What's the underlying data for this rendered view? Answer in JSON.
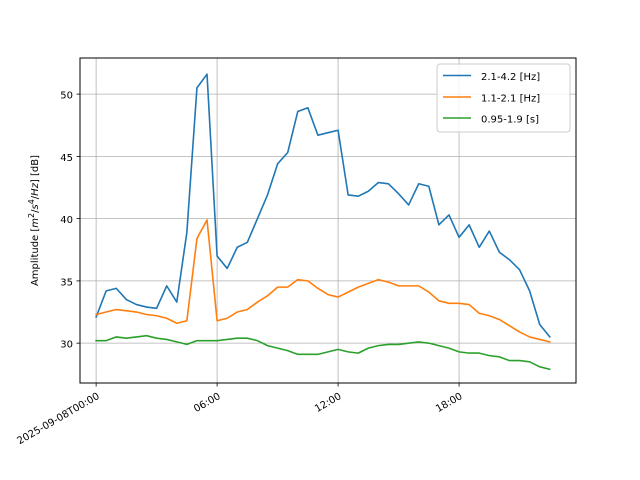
{
  "chart_data": {
    "type": "line",
    "title": "",
    "xlabel": "",
    "ylabel_parts": {
      "prefix": "Amplitude [",
      "m": "m",
      "m_exp": "2",
      "slash1": "/",
      "s": "s",
      "s_exp": "4",
      "slash2": "/",
      "hz": "Hz",
      "suffix": "] [dB]"
    },
    "grid": true,
    "legend_position": "top-right",
    "xlim": [
      "2025-09-07T23:12",
      "2025-09-08T23:48"
    ],
    "ylim": [
      26.8,
      52.9
    ],
    "x_ticks": [
      {
        "t": "2025-09-08T00:00",
        "label": "2025-09-08T00:00"
      },
      {
        "t": "2025-09-08T06:00",
        "label": "06:00"
      },
      {
        "t": "2025-09-08T12:00",
        "label": "12:00"
      },
      {
        "t": "2025-09-08T18:00",
        "label": "18:00"
      }
    ],
    "y_ticks": [
      30,
      35,
      40,
      45,
      50
    ],
    "x": [
      "2025-09-08T00:00",
      "2025-09-08T00:30",
      "2025-09-08T01:00",
      "2025-09-08T01:30",
      "2025-09-08T02:00",
      "2025-09-08T02:30",
      "2025-09-08T03:00",
      "2025-09-08T03:30",
      "2025-09-08T04:00",
      "2025-09-08T04:30",
      "2025-09-08T05:00",
      "2025-09-08T05:30",
      "2025-09-08T06:00",
      "2025-09-08T06:30",
      "2025-09-08T07:00",
      "2025-09-08T07:30",
      "2025-09-08T08:00",
      "2025-09-08T08:30",
      "2025-09-08T09:00",
      "2025-09-08T09:30",
      "2025-09-08T10:00",
      "2025-09-08T10:30",
      "2025-09-08T11:00",
      "2025-09-08T11:30",
      "2025-09-08T12:00",
      "2025-09-08T12:30",
      "2025-09-08T13:00",
      "2025-09-08T13:30",
      "2025-09-08T14:00",
      "2025-09-08T14:30",
      "2025-09-08T15:00",
      "2025-09-08T15:30",
      "2025-09-08T16:00",
      "2025-09-08T16:30",
      "2025-09-08T17:00",
      "2025-09-08T17:30",
      "2025-09-08T18:00",
      "2025-09-08T18:30",
      "2025-09-08T19:00",
      "2025-09-08T19:30",
      "2025-09-08T20:00",
      "2025-09-08T20:30",
      "2025-09-08T21:00",
      "2025-09-08T21:30",
      "2025-09-08T22:00",
      "2025-09-08T22:30"
    ],
    "series": [
      {
        "name": "2.1-4.2 [Hz]",
        "color": "#1f77b4",
        "values": [
          32.1,
          34.2,
          34.4,
          33.5,
          33.1,
          32.9,
          32.8,
          34.6,
          33.3,
          38.9,
          50.5,
          51.6,
          37.0,
          36.0,
          37.7,
          38.1,
          40.0,
          41.9,
          44.4,
          45.3,
          48.6,
          48.9,
          46.7,
          46.9,
          47.1,
          41.9,
          41.8,
          42.2,
          42.9,
          42.8,
          42.0,
          41.1,
          42.8,
          42.6,
          39.5,
          40.3,
          38.5,
          39.5,
          37.7,
          39.0,
          37.3,
          36.7,
          35.9,
          34.2,
          31.5,
          30.5
        ]
      },
      {
        "name": "1.1-2.1 [Hz]",
        "color": "#ff7f0e",
        "values": [
          32.3,
          32.5,
          32.7,
          32.6,
          32.5,
          32.3,
          32.2,
          32.0,
          31.6,
          31.8,
          38.4,
          39.9,
          31.8,
          32.0,
          32.5,
          32.7,
          33.3,
          33.8,
          34.5,
          34.5,
          35.1,
          35.0,
          34.4,
          33.9,
          33.7,
          34.1,
          34.5,
          34.8,
          35.1,
          34.9,
          34.6,
          34.6,
          34.6,
          34.1,
          33.4,
          33.2,
          33.2,
          33.1,
          32.4,
          32.2,
          31.9,
          31.4,
          30.9,
          30.5,
          30.3,
          30.1
        ]
      },
      {
        "name": "0.95-1.9 [s]",
        "color": "#2ca02c",
        "values": [
          30.2,
          30.2,
          30.5,
          30.4,
          30.5,
          30.6,
          30.4,
          30.3,
          30.1,
          29.9,
          30.2,
          30.2,
          30.2,
          30.3,
          30.4,
          30.4,
          30.2,
          29.8,
          29.6,
          29.4,
          29.1,
          29.1,
          29.1,
          29.3,
          29.5,
          29.3,
          29.2,
          29.6,
          29.8,
          29.9,
          29.9,
          30.0,
          30.1,
          30.0,
          29.8,
          29.6,
          29.3,
          29.2,
          29.2,
          29.0,
          28.9,
          28.6,
          28.6,
          28.5,
          28.1,
          27.9
        ]
      }
    ]
  }
}
